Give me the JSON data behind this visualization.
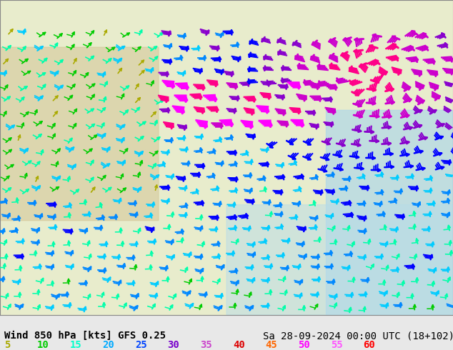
{
  "title_left": "Wind 850 hPa [kts] GFS 0.25",
  "title_right": "Sa 28-09-2024 00:00 UTC (18+102)",
  "legend_values": [
    "5",
    "10",
    "15",
    "20",
    "25",
    "30",
    "35",
    "40",
    "45",
    "50",
    "55",
    "60"
  ],
  "legend_colors": [
    "#aaaa00",
    "#00cc00",
    "#00ffff",
    "#0099ff",
    "#0000ff",
    "#ff00ff",
    "#ff00ff",
    "#cc0000",
    "#cc0000",
    "#ff00ff",
    "#ff00ff",
    "#ff0000"
  ],
  "bg_color": "#f5f0e0",
  "text_color": "#000000",
  "font_size_title": 10,
  "font_size_legend": 10,
  "bottom_bar_color": "#f0f0f0",
  "map_bg": "#d4e8f0",
  "legend_label_colors": {
    "5": "#aaaa00",
    "10": "#00cc00",
    "15": "#00ffff",
    "20": "#00aaff",
    "25": "#0055ff",
    "30": "#8800ff",
    "35": "#cc44cc",
    "40": "#cc0000",
    "45": "#ff6600",
    "50": "#ff00ff",
    "55": "#ff44ff",
    "60": "#ff0000"
  }
}
